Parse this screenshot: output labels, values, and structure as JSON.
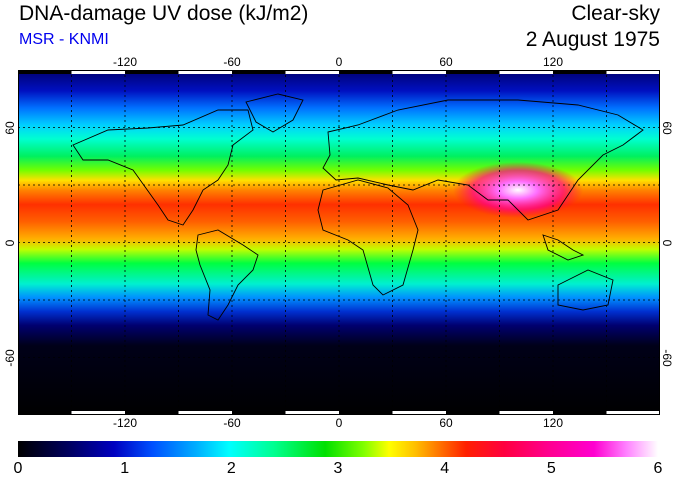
{
  "header": {
    "title": "DNA-damage UV dose (kJ/m2)",
    "subtitle": "MSR - KNMI",
    "sky": "Clear-sky",
    "date": "2 August 1975"
  },
  "colors": {
    "subtitle": "#0000ee",
    "grid": "#000000"
  },
  "map": {
    "lon_ticks": [
      "-120",
      "-60",
      "0",
      "60",
      "120"
    ],
    "lat_ticks": [
      "60",
      "0",
      "-60"
    ],
    "lon_values": [
      -120,
      -60,
      0,
      60,
      120
    ],
    "lat_values": [
      60,
      0,
      -60
    ],
    "lon_range": [
      -180,
      180
    ],
    "lat_range": [
      -90,
      90
    ],
    "grid_lons": [
      -150,
      -120,
      -90,
      -60,
      -30,
      0,
      30,
      60,
      90,
      120,
      150
    ],
    "grid_lats": [
      60,
      30,
      0,
      -30,
      -60
    ],
    "grid": "dotted",
    "projection": "equirectangular"
  },
  "colorbar": {
    "labels": [
      "0",
      "1",
      "2",
      "3",
      "4",
      "5",
      "6"
    ],
    "range": [
      0,
      6
    ]
  }
}
